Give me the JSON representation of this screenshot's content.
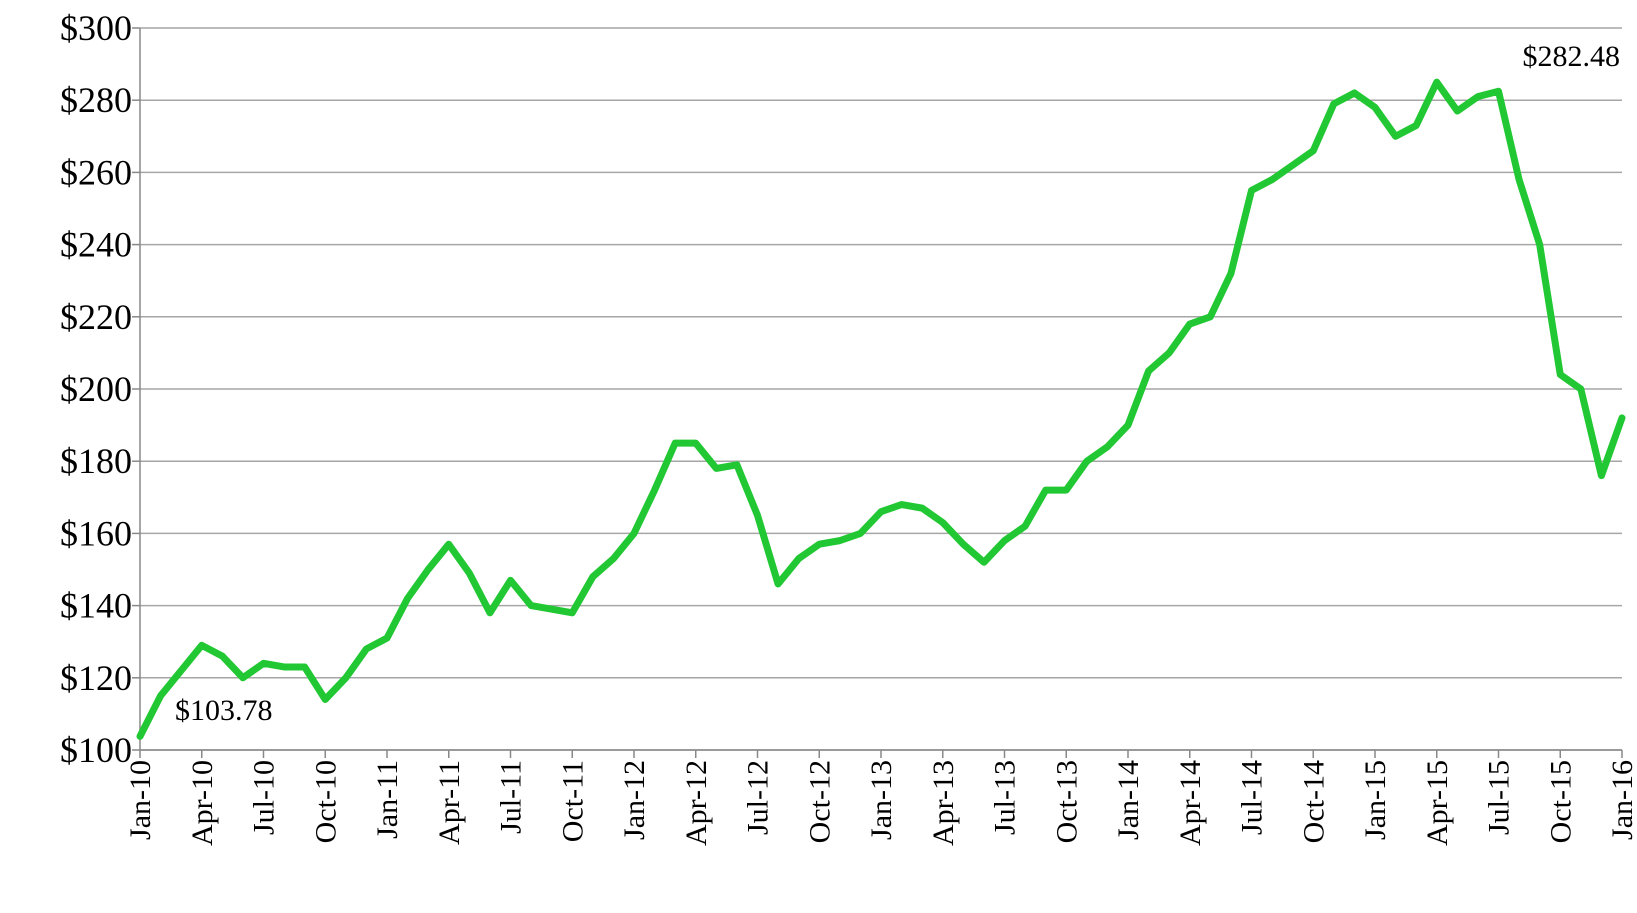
{
  "chart_data": {
    "type": "line",
    "categories": [
      "Jan-10",
      null,
      null,
      "Apr-10",
      null,
      null,
      "Jul-10",
      null,
      null,
      "Oct-10",
      null,
      null,
      "Jan-11",
      null,
      null,
      "Apr-11",
      null,
      null,
      "Jul-11",
      null,
      null,
      "Oct-11",
      null,
      null,
      "Jan-12",
      null,
      null,
      "Apr-12",
      null,
      null,
      "Jul-12",
      null,
      null,
      "Oct-12",
      null,
      null,
      "Jan-13",
      null,
      null,
      "Apr-13",
      null,
      null,
      "Jul-13",
      null,
      null,
      "Oct-13",
      null,
      null,
      "Jan-14",
      null,
      null,
      "Apr-14",
      null,
      null,
      "Jul-14",
      null,
      null,
      "Oct-14",
      null,
      null,
      "Jan-15",
      null,
      null,
      "Apr-15",
      null,
      null,
      "Jul-15",
      null,
      null,
      "Oct-15",
      null,
      null,
      "Jan-16"
    ],
    "series": [
      {
        "color": "#22c833",
        "values": [
          103.78,
          115,
          122,
          129,
          126,
          120,
          124,
          123,
          123,
          114,
          120,
          128,
          131,
          142,
          150,
          157,
          149,
          138,
          147,
          140,
          139,
          138,
          148,
          153,
          160,
          172,
          185,
          185,
          178,
          179,
          165,
          146,
          153,
          157,
          158,
          160,
          166,
          168,
          167,
          163,
          157,
          152,
          158,
          162,
          172,
          172,
          180,
          184,
          190,
          205,
          210,
          218,
          220,
          232,
          255,
          258,
          262,
          266,
          279,
          282,
          278,
          270,
          273,
          285,
          277,
          281,
          282.48,
          258,
          240,
          204,
          200,
          176,
          192
        ]
      }
    ],
    "annotations": [
      "$103.78",
      "$282.48"
    ],
    "ylim": [
      100,
      300
    ],
    "yticks": [
      {
        "value": 100,
        "label": "$100"
      },
      {
        "value": 120,
        "label": "$120"
      },
      {
        "value": 140,
        "label": "$140"
      },
      {
        "value": 160,
        "label": "$160"
      },
      {
        "value": 180,
        "label": "$180"
      },
      {
        "value": 200,
        "label": "$200"
      },
      {
        "value": 220,
        "label": "$220"
      },
      {
        "value": 240,
        "label": "$240"
      },
      {
        "value": 260,
        "label": "$260"
      },
      {
        "value": 280,
        "label": "$280"
      },
      {
        "value": 300,
        "label": "$300"
      }
    ],
    "grid": true
  }
}
